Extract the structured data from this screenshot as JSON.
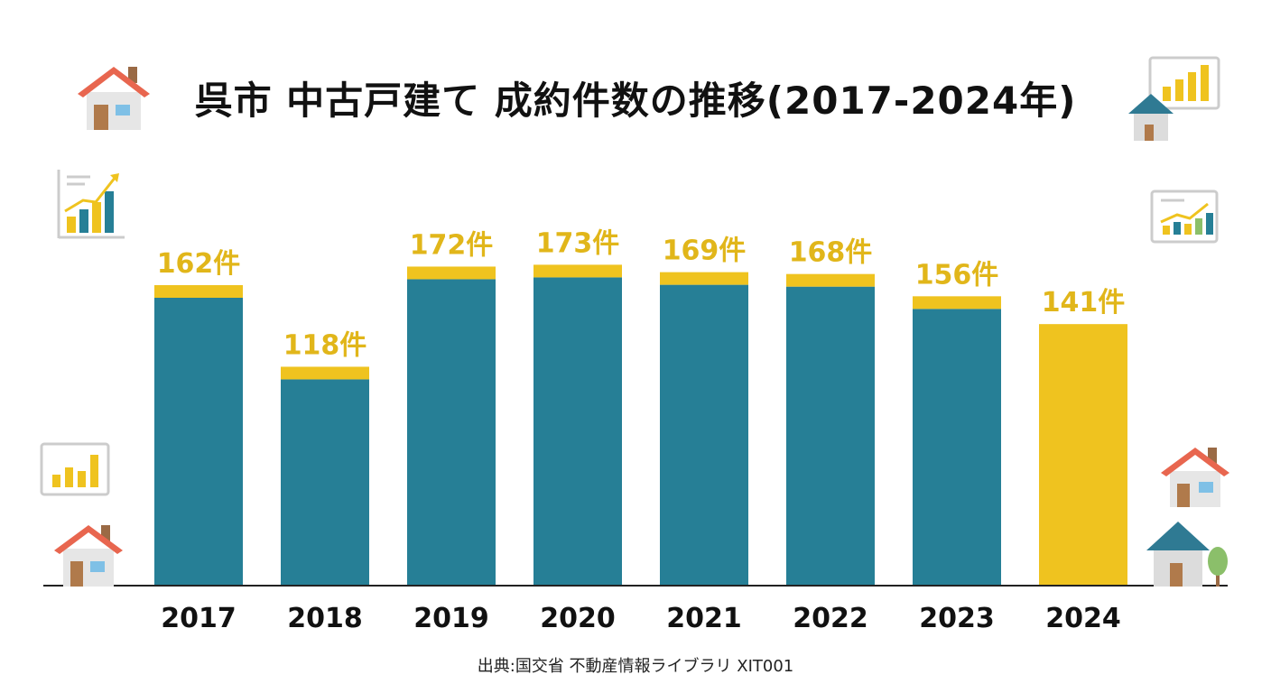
{
  "title": "呉市 中古戸建て 成約件数の推移(2017-2024年)",
  "source": "出典:国交省 不動産情報ライブラリ XIT001",
  "colors": {
    "bar": "#267F96",
    "cap": "#EFC31F",
    "highlight": "#EFC31F",
    "label": "#E1B61A",
    "axis": "#222222"
  },
  "chart_data": {
    "type": "bar",
    "categories": [
      "2017",
      "2018",
      "2019",
      "2020",
      "2021",
      "2022",
      "2023",
      "2024"
    ],
    "values": [
      162,
      118,
      172,
      173,
      169,
      168,
      156,
      141
    ],
    "value_labels": [
      "162件",
      "118件",
      "172件",
      "173件",
      "169件",
      "168件",
      "156件",
      "141件"
    ],
    "highlight_index": 7,
    "ylim": [
      0,
      180
    ],
    "grid": false,
    "legend": "none"
  },
  "decorations": [
    {
      "icon": "house-icon"
    },
    {
      "icon": "chart-board-icon"
    },
    {
      "icon": "growth-chart-icon"
    },
    {
      "icon": "growth-chart-icon"
    },
    {
      "icon": "bar-chart-icon"
    },
    {
      "icon": "house-icon"
    },
    {
      "icon": "house-icon"
    },
    {
      "icon": "blue-house-icon"
    },
    {
      "icon": "tree-icon"
    }
  ]
}
